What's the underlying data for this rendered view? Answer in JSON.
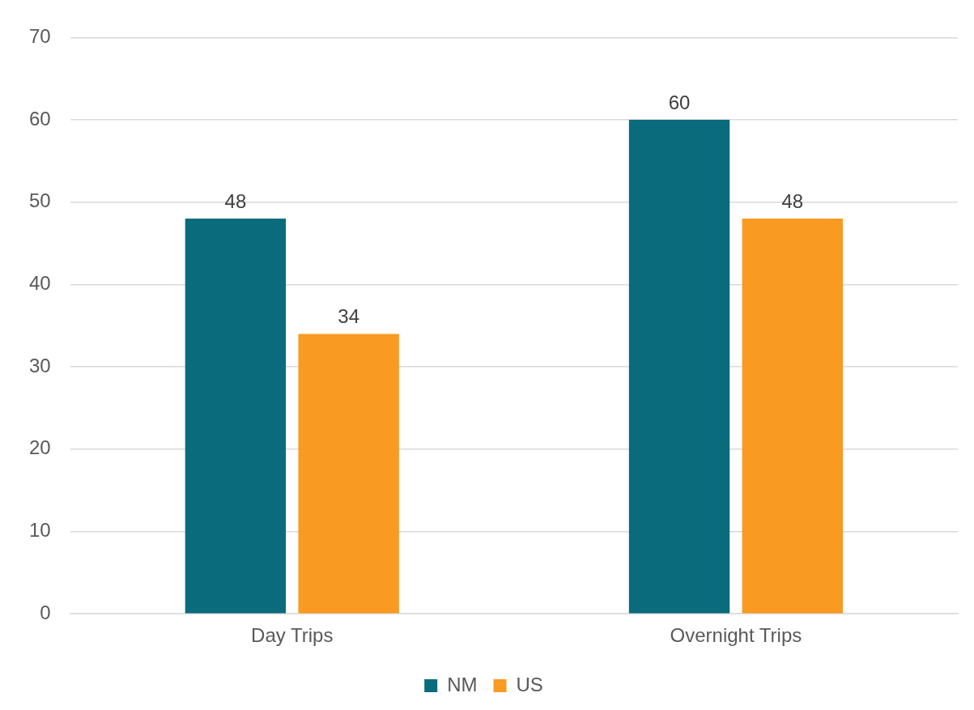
{
  "chart_data": {
    "type": "bar",
    "categories": [
      "Day Trips",
      "Overnight Trips"
    ],
    "series": [
      {
        "name": "NM",
        "color": "#0a6b7c",
        "values": [
          48,
          60
        ]
      },
      {
        "name": "US",
        "color": "#f99a22",
        "values": [
          34,
          48
        ]
      }
    ],
    "ylim": [
      0,
      70
    ],
    "yticks": [
      0,
      10,
      20,
      30,
      40,
      50,
      60,
      70
    ],
    "grid": "y",
    "legend": "bottom",
    "data_labels": true
  }
}
